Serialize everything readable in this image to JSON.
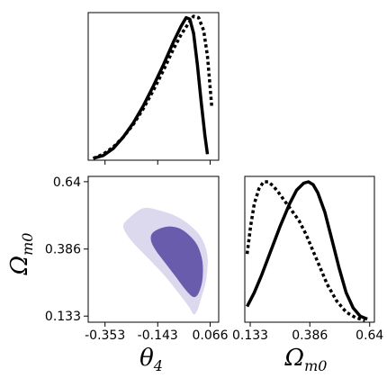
{
  "chart_data": [
    {
      "type": "line",
      "panel": "theta4-marginal",
      "xlim": [
        -0.42,
        0.1
      ],
      "ylim": [
        0,
        1.0
      ],
      "xticks": [
        -0.353,
        -0.143,
        0.066
      ],
      "series": [
        {
          "style": "solid",
          "x": [
            -0.4,
            -0.36,
            -0.32,
            -0.28,
            -0.24,
            -0.2,
            -0.16,
            -0.12,
            -0.08,
            -0.05,
            -0.03,
            -0.015,
            0.0,
            0.015,
            0.03,
            0.045,
            0.055
          ],
          "y": [
            0.0,
            0.02,
            0.07,
            0.15,
            0.25,
            0.37,
            0.51,
            0.66,
            0.82,
            0.93,
            0.99,
            0.98,
            0.88,
            0.66,
            0.4,
            0.16,
            0.03
          ]
        },
        {
          "style": "dotted",
          "x": [
            -0.4,
            -0.36,
            -0.32,
            -0.28,
            -0.24,
            -0.2,
            -0.16,
            -0.12,
            -0.08,
            -0.05,
            -0.02,
            0.0,
            0.02,
            0.04,
            0.055,
            0.065,
            0.072
          ],
          "y": [
            0.0,
            0.03,
            0.08,
            0.15,
            0.24,
            0.35,
            0.48,
            0.62,
            0.77,
            0.87,
            0.95,
            1.0,
            0.99,
            0.9,
            0.72,
            0.52,
            0.37
          ]
        }
      ]
    },
    {
      "type": "contour",
      "panel": "theta4-vs-omega_m0",
      "xlim": [
        -0.42,
        0.1
      ],
      "ylim": [
        0.11,
        0.66
      ],
      "xticks": [
        -0.353,
        -0.143,
        0.066
      ],
      "yticks": [
        0.133,
        0.386,
        0.64
      ],
      "xlabel": "θ",
      "xlabel_sub": "4",
      "ylabel": "Ω",
      "ylabel_sub": "m0",
      "levels": [
        {
          "name": "outer",
          "color": "#dcd9ee",
          "points": [
            [
              -0.26,
              0.5
            ],
            [
              -0.2,
              0.54
            ],
            [
              -0.13,
              0.53
            ],
            [
              -0.07,
              0.51
            ],
            [
              -0.02,
              0.48
            ],
            [
              0.03,
              0.43
            ],
            [
              0.055,
              0.36
            ],
            [
              0.05,
              0.27
            ],
            [
              0.03,
              0.2
            ],
            [
              0.015,
              0.155
            ],
            [
              0.0,
              0.14
            ],
            [
              -0.02,
              0.17
            ],
            [
              -0.06,
              0.22
            ],
            [
              -0.12,
              0.29
            ],
            [
              -0.19,
              0.36
            ],
            [
              -0.25,
              0.42
            ],
            [
              -0.28,
              0.47
            ]
          ]
        },
        {
          "name": "inner",
          "color": "#6a5cad",
          "points": [
            [
              -0.16,
              0.45
            ],
            [
              -0.11,
              0.47
            ],
            [
              -0.06,
              0.465
            ],
            [
              -0.02,
              0.44
            ],
            [
              0.015,
              0.4
            ],
            [
              0.035,
              0.34
            ],
            [
              0.035,
              0.27
            ],
            [
              0.02,
              0.22
            ],
            [
              0.0,
              0.205
            ],
            [
              -0.03,
              0.23
            ],
            [
              -0.07,
              0.28
            ],
            [
              -0.11,
              0.33
            ],
            [
              -0.15,
              0.38
            ],
            [
              -0.17,
              0.42
            ]
          ]
        }
      ]
    },
    {
      "type": "line",
      "panel": "omega_m0-marginal",
      "xlim": [
        0.11,
        0.66
      ],
      "ylim": [
        0,
        1.0
      ],
      "xticks": [
        0.133,
        0.386,
        0.64
      ],
      "xlabel": "Ω",
      "xlabel_sub": "m0",
      "series": [
        {
          "style": "solid",
          "x": [
            0.12,
            0.15,
            0.18,
            0.22,
            0.26,
            0.3,
            0.33,
            0.36,
            0.38,
            0.4,
            0.42,
            0.45,
            0.48,
            0.51,
            0.54,
            0.57,
            0.6,
            0.63
          ],
          "y": [
            0.1,
            0.2,
            0.32,
            0.5,
            0.68,
            0.84,
            0.94,
            0.99,
            1.0,
            0.98,
            0.92,
            0.78,
            0.58,
            0.38,
            0.2,
            0.09,
            0.03,
            0.01
          ]
        },
        {
          "style": "dotted",
          "x": [
            0.12,
            0.135,
            0.15,
            0.17,
            0.19,
            0.21,
            0.23,
            0.25,
            0.28,
            0.31,
            0.34,
            0.37,
            0.4,
            0.43,
            0.46,
            0.5,
            0.54,
            0.58,
            0.62
          ],
          "y": [
            0.48,
            0.68,
            0.84,
            0.95,
            1.0,
            1.0,
            0.97,
            0.93,
            0.86,
            0.79,
            0.72,
            0.62,
            0.5,
            0.38,
            0.26,
            0.14,
            0.06,
            0.02,
            0.0
          ]
        }
      ]
    }
  ]
}
